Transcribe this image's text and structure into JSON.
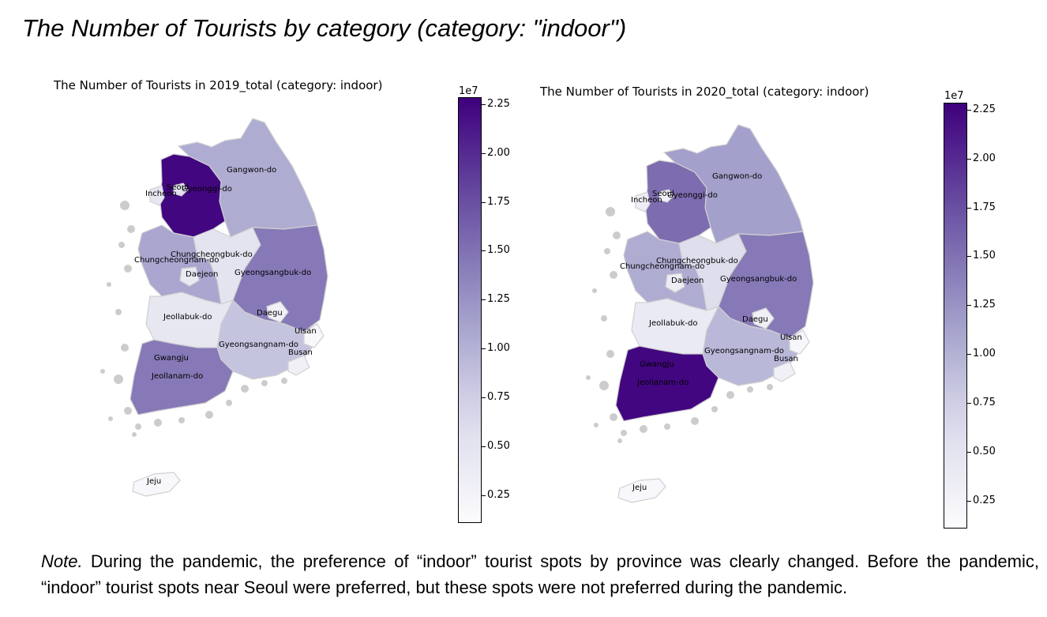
{
  "title": "The Number of Tourists by category (category: \"indoor\")",
  "note": {
    "lead": "Note.",
    "text": " During the pandemic, the preference of “indoor” tourist spots by province was clearly changed. Before the pandemic, “indoor” tourist spots near Seoul were preferred, but these spots were not preferred during the pandemic."
  },
  "colormap": {
    "name": "Purples",
    "low": "#fcfbfd",
    "high": "#3f007d",
    "missing": "#cccccc"
  },
  "maps": [
    {
      "title": "The Number of Tourists in 2019_total (category: indoor)",
      "colorbar": {
        "exponent": "1e7",
        "min": 0.12,
        "max": 2.29,
        "ticks": [
          "0.25",
          "0.50",
          "0.75",
          "1.00",
          "1.25",
          "1.50",
          "1.75",
          "2.00",
          "2.25"
        ]
      },
      "regions": [
        {
          "name": "Gangwon-do",
          "value": 1.05
        },
        {
          "name": "Gyeonggi-do",
          "value": 2.25
        },
        {
          "name": "Seoul",
          "value": 0.55
        },
        {
          "name": "Incheon",
          "value": 0.45
        },
        {
          "name": "Chungcheongbuk-do",
          "value": 0.5
        },
        {
          "name": "Chungcheongnam-do",
          "value": 1.1
        },
        {
          "name": "Daejeon",
          "value": 0.4
        },
        {
          "name": "Gyeongsangbuk-do",
          "value": 1.45
        },
        {
          "name": "Daegu",
          "value": 0.3
        },
        {
          "name": "Jeollabuk-do",
          "value": 0.45
        },
        {
          "name": "Gyeongsangnam-do",
          "value": 0.85
        },
        {
          "name": "Ulsan",
          "value": 0.2
        },
        {
          "name": "Busan",
          "value": 0.3
        },
        {
          "name": "Gwangju",
          "value": 0.25
        },
        {
          "name": "Jeollanam-do",
          "value": 1.45
        },
        {
          "name": "Jeju",
          "value": 0.18
        }
      ]
    },
    {
      "title": "The Number of Tourists in 2020_total (category: indoor)",
      "colorbar": {
        "exponent": "1e7",
        "min": 0.12,
        "max": 2.29,
        "ticks": [
          "0.25",
          "0.50",
          "0.75",
          "1.00",
          "1.25",
          "1.50",
          "1.75",
          "2.00",
          "2.25"
        ]
      },
      "regions": [
        {
          "name": "Gangwon-do",
          "value": 1.15
        },
        {
          "name": "Gyeonggi-do",
          "value": 1.55
        },
        {
          "name": "Seoul",
          "value": 0.3
        },
        {
          "name": "Incheon",
          "value": 0.35
        },
        {
          "name": "Chungcheongbuk-do",
          "value": 0.6
        },
        {
          "name": "Chungcheongnam-do",
          "value": 1.05
        },
        {
          "name": "Daejeon",
          "value": 0.35
        },
        {
          "name": "Gyeongsangbuk-do",
          "value": 1.45
        },
        {
          "name": "Daegu",
          "value": 0.3
        },
        {
          "name": "Jeollabuk-do",
          "value": 0.4
        },
        {
          "name": "Gyeongsangnam-do",
          "value": 0.95
        },
        {
          "name": "Ulsan",
          "value": 0.2
        },
        {
          "name": "Busan",
          "value": 0.3
        },
        {
          "name": "Gwangju",
          "value": 0.25
        },
        {
          "name": "Jeollanam-do",
          "value": 2.25
        },
        {
          "name": "Jeju",
          "value": 0.18
        }
      ]
    }
  ]
}
